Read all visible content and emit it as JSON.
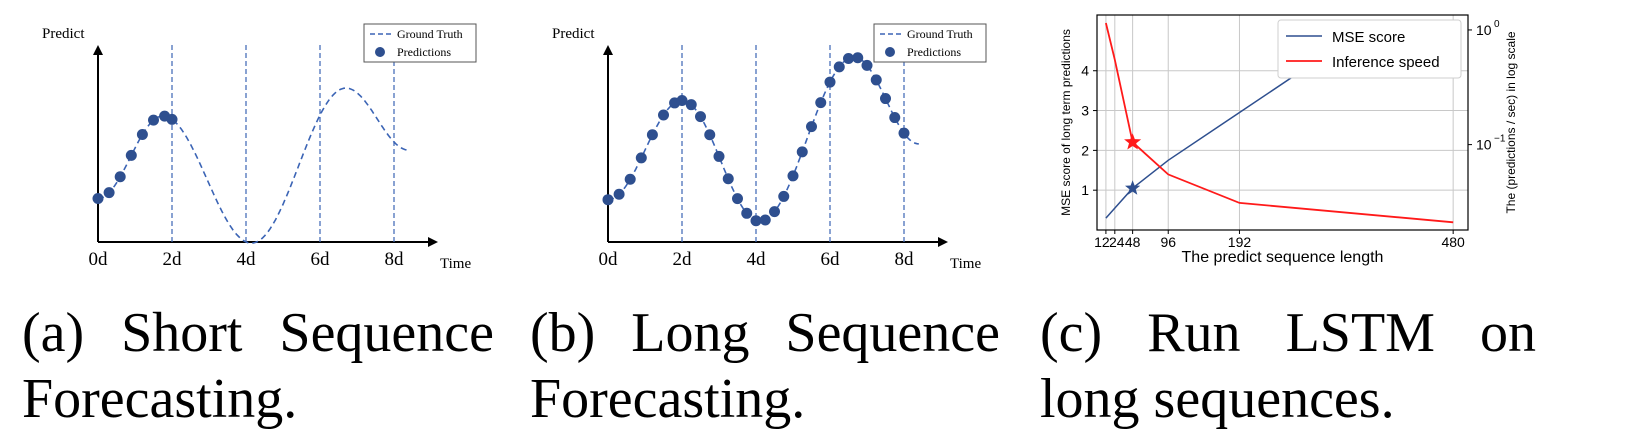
{
  "captions": {
    "a": {
      "line1": "(a) Short Sequence",
      "line2": "Forecasting."
    },
    "b": {
      "line1": "(b) Long Sequence",
      "line2": "Forecasting."
    },
    "c": {
      "line1": "(c) Run LSTM on",
      "line2": "long sequences."
    }
  },
  "colors": {
    "blue": "#2e4f8f",
    "dash": "#3b64b5",
    "red": "#ff1a1a"
  },
  "chart_data": [
    {
      "type": "line",
      "ylabel": "Predict",
      "xlabel": "Time",
      "x_ticks": [
        "0d",
        "2d",
        "4d",
        "6d",
        "8d"
      ],
      "x_tick_values": [
        0,
        2,
        4,
        6,
        8
      ],
      "xlim": [
        0,
        9.2
      ],
      "ylim": [
        -1.3,
        1.6
      ],
      "legend": {
        "position": "top-right",
        "entries": [
          "Ground Truth",
          "Predictions"
        ]
      },
      "ground_truth": {
        "name": "Ground Truth",
        "x_range": [
          0,
          8.4
        ],
        "period": 6.67,
        "amplitude": 1.0,
        "start_x": 0,
        "end_x": 8.4
      },
      "predictions": {
        "name": "Predictions",
        "x": [
          0.0,
          0.3,
          0.6,
          0.9,
          1.2,
          1.5,
          1.8,
          2.0
        ]
      }
    },
    {
      "type": "line",
      "ylabel": "Predict",
      "xlabel": "Time",
      "x_ticks": [
        "0d",
        "2d",
        "4d",
        "6d",
        "8d"
      ],
      "x_tick_values": [
        0,
        2,
        4,
        6,
        8
      ],
      "xlim": [
        0,
        9.2
      ],
      "ylim": [
        -1.3,
        1.6
      ],
      "legend": {
        "position": "top-right",
        "entries": [
          "Ground Truth",
          "Predictions"
        ]
      },
      "ground_truth": {
        "name": "Ground Truth",
        "x_range": [
          0,
          8.4
        ],
        "period": 4.5,
        "amplitude": 1.0
      },
      "predictions": {
        "name": "Predictions",
        "x": [
          0.0,
          0.3,
          0.6,
          0.9,
          1.2,
          1.5,
          1.8,
          2.0,
          2.25,
          2.5,
          2.75,
          3.0,
          3.25,
          3.5,
          3.75,
          4.0,
          4.25,
          4.5,
          4.75,
          5.0,
          5.25,
          5.5,
          5.75,
          6.0,
          6.25,
          6.5,
          6.75,
          7.0,
          7.25,
          7.5,
          7.75,
          8.0
        ]
      }
    },
    {
      "type": "line",
      "xlabel": "The predict sequence length",
      "ylabel": "MSE score of long term predictions",
      "ylabel_right": "The (predictions / sec) in log scale",
      "x_ticks": [
        12,
        24,
        48,
        96,
        192,
        480
      ],
      "x_tick_labels": [
        "12",
        "24",
        "48",
        "96",
        "192",
        "480"
      ],
      "xlim": [
        0,
        500
      ],
      "y_ticks": [
        1,
        2,
        3,
        4
      ],
      "ylim": [
        0,
        5.4
      ],
      "y2_tick_labels": [
        "10",
        "0",
        "10",
        "−1"
      ],
      "y2_ticks": [
        1,
        0.1
      ],
      "y2lim": [
        0.018,
        1.35
      ],
      "grid": true,
      "legend": {
        "position": "top-right",
        "entries": [
          "MSE score",
          "Inference speed"
        ]
      },
      "series": [
        {
          "name": "MSE score",
          "axis": "left",
          "x": [
            12,
            24,
            48,
            96,
            192,
            300
          ],
          "y": [
            0.3,
            0.55,
            1.05,
            1.75,
            2.95,
            4.3
          ]
        },
        {
          "name": "Inference speed",
          "axis": "right",
          "x": [
            12,
            24,
            48,
            96,
            192,
            480
          ],
          "y": [
            1.15,
            0.55,
            0.105,
            0.055,
            0.031,
            0.021
          ]
        }
      ],
      "markers": [
        {
          "series": "MSE score",
          "x": 48,
          "y": 1.05,
          "shape": "star"
        },
        {
          "series": "Inference speed",
          "x": 48,
          "y": 0.105,
          "shape": "star"
        }
      ]
    }
  ]
}
